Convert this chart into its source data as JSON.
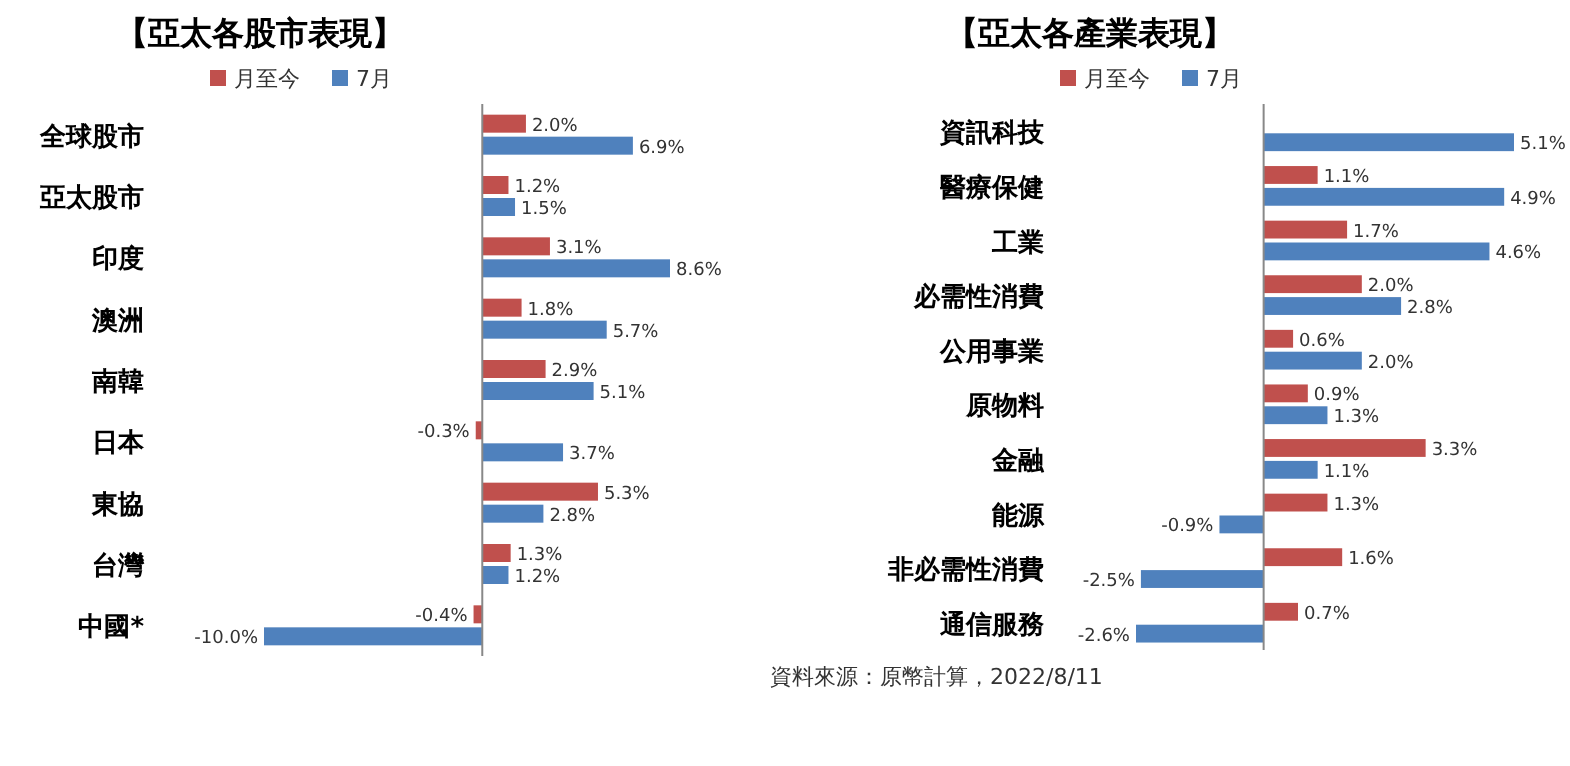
{
  "chart_data": [
    {
      "type": "bar",
      "orientation": "horizontal",
      "title": "【亞太各股市表現】",
      "legend": "top",
      "categories": [
        "全球股市",
        "亞太股市",
        "印度",
        "澳洲",
        "南韓",
        "日本",
        "東協",
        "台灣",
        "中國*"
      ],
      "series": [
        {
          "name": "月至今",
          "color": "#c0504d",
          "values": [
            2.0,
            1.2,
            3.1,
            1.8,
            2.9,
            -0.3,
            5.3,
            1.3,
            -0.4
          ],
          "value_labels": [
            "2.0%",
            "1.2%",
            "3.1%",
            "1.8%",
            "2.9%",
            "-0.3%",
            "5.3%",
            "1.3%",
            "-0.4%"
          ]
        },
        {
          "name": "7月",
          "color": "#4f81bd",
          "values": [
            6.9,
            1.5,
            8.6,
            5.7,
            5.1,
            3.7,
            2.8,
            1.2,
            -10.0
          ],
          "value_labels": [
            "6.9%",
            "1.5%",
            "8.6%",
            "5.7%",
            "5.1%",
            "3.7%",
            "2.8%",
            "1.2%",
            "-10.0%"
          ]
        }
      ]
    },
    {
      "type": "bar",
      "orientation": "horizontal",
      "title": "【亞太各產業表現】",
      "legend": "top",
      "categories": [
        "資訊科技",
        "醫療保健",
        "工業",
        "必需性消費",
        "公用事業",
        "原物料",
        "金融",
        "能源",
        "非必需性消費",
        "通信服務"
      ],
      "series": [
        {
          "name": "月至今",
          "color": "#c0504d",
          "values": [
            null,
            1.1,
            1.7,
            2.0,
            0.6,
            0.9,
            3.3,
            1.3,
            1.6,
            0.7
          ],
          "value_labels": [
            null,
            "1.1%",
            "1.7%",
            "2.0%",
            "0.6%",
            "0.9%",
            "3.3%",
            "1.3%",
            "1.6%",
            "0.7%"
          ]
        },
        {
          "name": "7月",
          "color": "#4f81bd",
          "values": [
            5.1,
            4.9,
            4.6,
            2.8,
            2.0,
            1.3,
            1.1,
            -0.9,
            -2.5,
            -2.6
          ],
          "value_labels": [
            "5.1%",
            "4.9%",
            "4.6%",
            "2.8%",
            "2.0%",
            "1.3%",
            "1.1%",
            "-0.9%",
            "-2.5%",
            "-2.6%"
          ]
        }
      ],
      "annotations": [
        "資料來源：原幣計算，2022/8/11"
      ]
    }
  ]
}
